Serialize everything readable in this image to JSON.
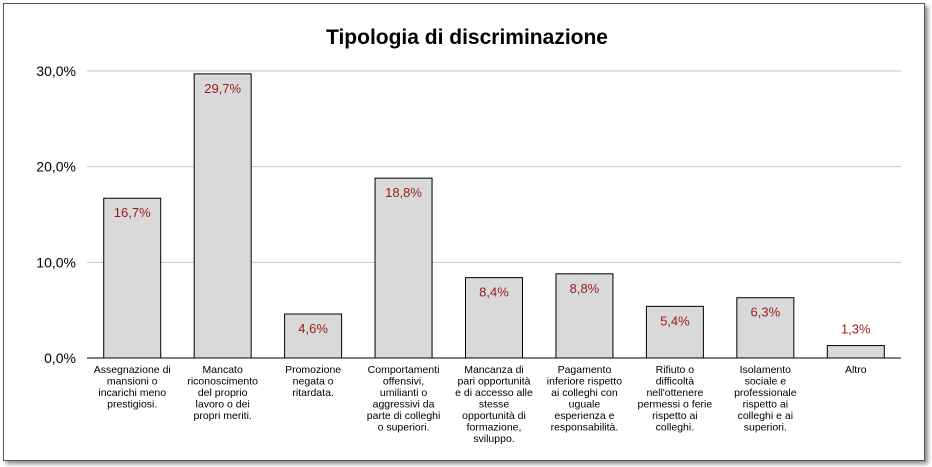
{
  "chart_data": {
    "type": "bar",
    "title": "Tipologia di discriminazione",
    "xlabel": "",
    "ylabel": "",
    "ylim": [
      0,
      30
    ],
    "yticks": [
      {
        "value": 0,
        "label": "0,0%"
      },
      {
        "value": 10,
        "label": "10,0%"
      },
      {
        "value": 20,
        "label": "20,0%"
      },
      {
        "value": 30,
        "label": "30,0%"
      }
    ],
    "grid": true,
    "legend": "none",
    "categories": [
      [
        "Assegnazione di",
        "mansioni o",
        "incarichi meno",
        "prestigiosi."
      ],
      [
        "Mancato",
        "riconoscimento",
        "del proprio",
        "lavoro o dei",
        "propri meriti."
      ],
      [
        "Promozione",
        "negata o",
        "ritardata."
      ],
      [
        "Comportamenti",
        "offensivi,",
        "umilianti o",
        "aggressivi da",
        "parte di colleghi",
        "o superiori."
      ],
      [
        "Mancanza di",
        "pari opportunità",
        "e di accesso alle",
        "stesse",
        "opportunità di",
        "formazione,",
        "sviluppo."
      ],
      [
        "Pagamento",
        "inferiore rispetto",
        "ai colleghi con",
        "uguale",
        "esperienza e",
        "responsabilità."
      ],
      [
        "Rifiuto o",
        "difficoltà",
        "nell'ottenere",
        "permessi o ferie",
        "rispetto ai",
        "colleghi."
      ],
      [
        "Isolamento",
        "sociale e",
        "professionale",
        "rispetto ai",
        "colleghi e ai",
        "superiori."
      ],
      [
        "Altro"
      ]
    ],
    "values": [
      16.7,
      29.7,
      4.6,
      18.8,
      8.4,
      8.8,
      5.4,
      6.3,
      1.3
    ],
    "value_labels": [
      "16,7%",
      "29,7%",
      "4,6%",
      "18,8%",
      "8,4%",
      "8,8%",
      "5,4%",
      "6,3%",
      "1,3%"
    ],
    "colors": {
      "bar_fill": "#d9d9d9",
      "bar_stroke": "#000000",
      "value_label": "#9b1b1b",
      "grid": "#c8c8c8",
      "axis": "#000000"
    }
  }
}
